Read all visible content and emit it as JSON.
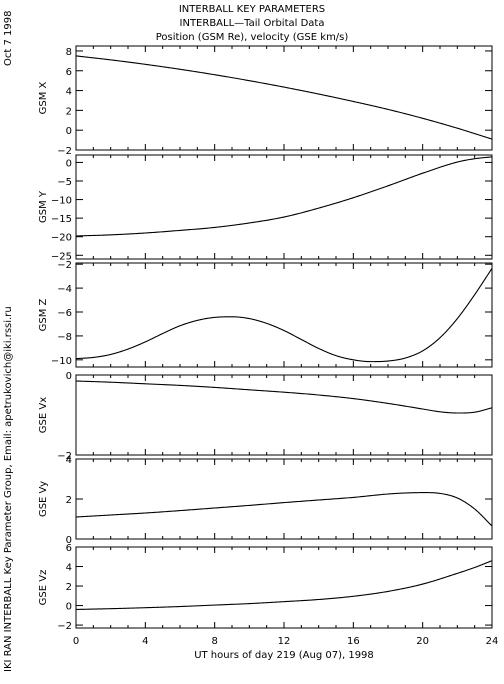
{
  "header": {
    "title": "INTERBALL KEY PARAMETERS",
    "subtitle": "INTERBALL—Tail Orbital Data",
    "subsubtitle": "Position (GSM Re), velocity (GSE km/s)"
  },
  "side": {
    "date": "Oct  7 1998",
    "credit": "IKI RAN INTERBALL Key Parameter Group, Email: apetrukovich@iki.rssi.ru"
  },
  "chart_data": {
    "type": "line",
    "x_axis": {
      "label": "UT hours of day 219 (Aug 07), 1998",
      "range": [
        0,
        24
      ],
      "ticks": [
        0,
        4,
        8,
        12,
        16,
        20,
        24
      ]
    },
    "panels": [
      {
        "ylabel": "GSM X",
        "ylim": [
          -2,
          8.5
        ],
        "yticks": [
          -2,
          0,
          2,
          4,
          6,
          8
        ],
        "x": [
          0,
          2,
          4,
          6,
          8,
          10,
          12,
          14,
          16,
          18,
          20,
          22,
          24
        ],
        "values": [
          7.5,
          7.1,
          6.65,
          6.15,
          5.6,
          5.0,
          4.35,
          3.65,
          2.9,
          2.1,
          1.2,
          0.2,
          -0.9
        ]
      },
      {
        "ylabel": "GSM Y",
        "ylim": [
          -26,
          2
        ],
        "yticks": [
          -25,
          -20,
          -15,
          -10,
          -5,
          0
        ],
        "x": [
          0,
          2,
          4,
          6,
          8,
          10,
          12,
          14,
          16,
          18,
          20,
          22,
          23,
          24
        ],
        "values": [
          -19.8,
          -19.5,
          -19.0,
          -18.3,
          -17.5,
          -16.3,
          -14.7,
          -12.3,
          -9.5,
          -6.3,
          -2.9,
          0.1,
          1.0,
          1.5
        ]
      },
      {
        "ylabel": "GSM Z",
        "ylim": [
          -10.6,
          -1.9
        ],
        "yticks": [
          -10,
          -8,
          -6,
          -4,
          -2
        ],
        "x": [
          0,
          1,
          2,
          3,
          4,
          5,
          6,
          7,
          8,
          9,
          10,
          11,
          12,
          13,
          14,
          15,
          16,
          17,
          18,
          19,
          20,
          21,
          22,
          23,
          24
        ],
        "values": [
          -9.9,
          -9.8,
          -9.55,
          -9.1,
          -8.5,
          -7.8,
          -7.15,
          -6.7,
          -6.45,
          -6.4,
          -6.55,
          -6.95,
          -7.55,
          -8.3,
          -9.05,
          -9.65,
          -10.0,
          -10.15,
          -10.1,
          -9.85,
          -9.25,
          -8.15,
          -6.55,
          -4.55,
          -2.35
        ]
      },
      {
        "ylabel": "GSE Vx",
        "ylim": [
          -2,
          0
        ],
        "yticks": [
          -2,
          0
        ],
        "x": [
          0,
          2,
          4,
          6,
          8,
          10,
          12,
          14,
          16,
          18,
          20,
          21,
          22,
          23,
          24
        ],
        "values": [
          -0.15,
          -0.18,
          -0.22,
          -0.26,
          -0.31,
          -0.37,
          -0.43,
          -0.5,
          -0.59,
          -0.71,
          -0.85,
          -0.92,
          -0.95,
          -0.93,
          -0.82
        ]
      },
      {
        "ylabel": "GSE Vy",
        "ylim": [
          0,
          4
        ],
        "yticks": [
          0,
          2,
          4
        ],
        "x": [
          0,
          2,
          4,
          6,
          8,
          10,
          12,
          14,
          16,
          18,
          19,
          20,
          21,
          22,
          23,
          24
        ],
        "values": [
          1.1,
          1.2,
          1.3,
          1.42,
          1.55,
          1.68,
          1.82,
          1.95,
          2.08,
          2.25,
          2.3,
          2.32,
          2.28,
          2.05,
          1.5,
          0.65
        ]
      },
      {
        "ylabel": "GSE Vz",
        "ylim": [
          -2.3,
          6
        ],
        "yticks": [
          -2,
          0,
          2,
          4,
          6
        ],
        "x": [
          0,
          2,
          4,
          6,
          8,
          10,
          12,
          14,
          16,
          18,
          20,
          22,
          23,
          24
        ],
        "values": [
          -0.4,
          -0.32,
          -0.22,
          -0.1,
          0.05,
          0.2,
          0.4,
          0.62,
          0.95,
          1.45,
          2.2,
          3.3,
          3.9,
          4.6
        ]
      }
    ]
  }
}
